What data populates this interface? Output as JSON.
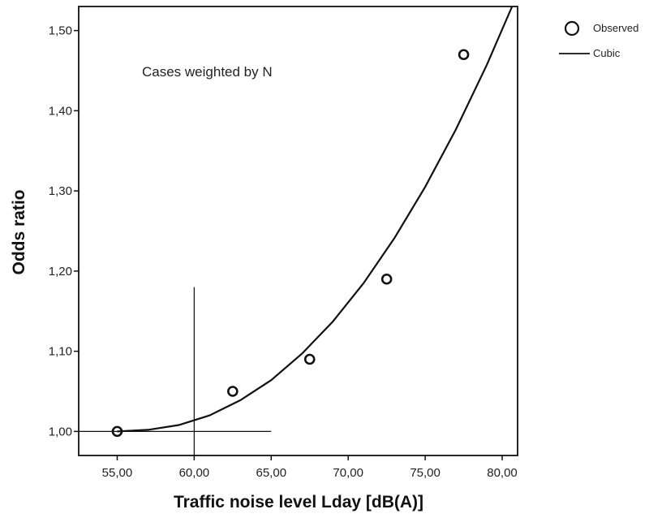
{
  "chart_data": {
    "type": "scatter",
    "title": "",
    "xlabel": "Traffic noise level Lday [dB(A)]",
    "ylabel": "Odds ratio",
    "annotation": "Cases weighted by N",
    "xlim": [
      52.5,
      81.0
    ],
    "ylim": [
      0.97,
      1.53
    ],
    "x_ticks": [
      55,
      60,
      65,
      70,
      75,
      80
    ],
    "x_tick_labels": [
      "55,00",
      "60,00",
      "65,00",
      "70,00",
      "75,00",
      "80,00"
    ],
    "y_ticks": [
      1.0,
      1.1,
      1.2,
      1.3,
      1.4,
      1.5
    ],
    "y_tick_labels": [
      "1,00",
      "1,10",
      "1,20",
      "1,30",
      "1,40",
      "1,50"
    ],
    "grid": false,
    "legend_position": "top-right (outside plot)",
    "series": [
      {
        "name": "Observed",
        "kind": "points",
        "marker": "open-circle",
        "x": [
          55.0,
          62.5,
          67.5,
          72.5,
          77.5
        ],
        "y": [
          1.0,
          1.05,
          1.09,
          1.19,
          1.47
        ]
      },
      {
        "name": "Cubic",
        "kind": "line",
        "x": [
          55,
          57,
          59,
          61,
          63,
          65,
          67,
          69,
          71,
          73,
          75,
          77,
          79,
          81
        ],
        "y": [
          1.0,
          1.002,
          1.008,
          1.02,
          1.039,
          1.064,
          1.097,
          1.137,
          1.185,
          1.241,
          1.305,
          1.377,
          1.457,
          1.546
        ]
      }
    ],
    "reference_lines": [
      {
        "orientation": "vertical",
        "x": 60.0,
        "y_from": 0.97,
        "y_to": 1.18
      },
      {
        "orientation": "horizontal",
        "y": 1.0,
        "x_from": 52.5,
        "x_to": 65.0
      }
    ]
  },
  "colors": {
    "ink": "#111111",
    "background": "#ffffff"
  }
}
